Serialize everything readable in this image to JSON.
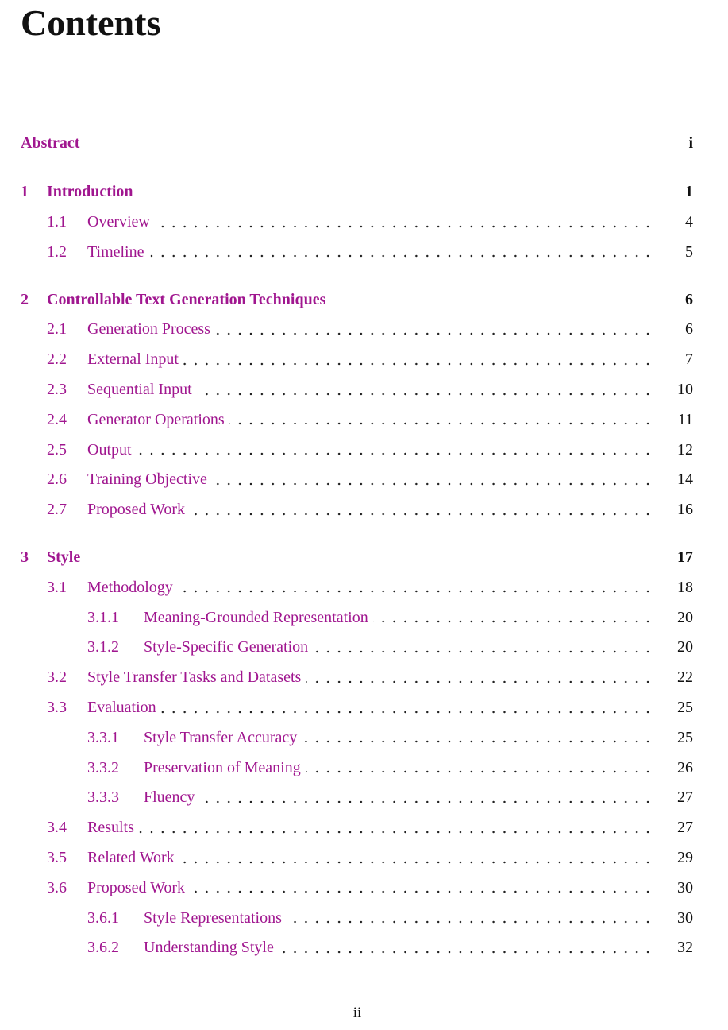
{
  "title": "Contents",
  "accent_color": "#a0168f",
  "entries": [
    {
      "level": "abstract",
      "num": "",
      "title": "Abstract",
      "page": "i"
    },
    {
      "level": "chapter",
      "num": "1",
      "title": "Introduction",
      "page": "1"
    },
    {
      "level": "section",
      "num": "1.1",
      "title": "Overview",
      "page": "4"
    },
    {
      "level": "section",
      "num": "1.2",
      "title": "Timeline",
      "page": "5"
    },
    {
      "level": "chapter",
      "num": "2",
      "title": "Controllable Text Generation Techniques",
      "page": "6"
    },
    {
      "level": "section",
      "num": "2.1",
      "title": "Generation Process",
      "page": "6"
    },
    {
      "level": "section",
      "num": "2.2",
      "title": "External Input",
      "page": "7"
    },
    {
      "level": "section",
      "num": "2.3",
      "title": "Sequential Input",
      "page": "10"
    },
    {
      "level": "section",
      "num": "2.4",
      "title": "Generator Operations",
      "page": "11"
    },
    {
      "level": "section",
      "num": "2.5",
      "title": "Output",
      "page": "12"
    },
    {
      "level": "section",
      "num": "2.6",
      "title": "Training Objective",
      "page": "14"
    },
    {
      "level": "section",
      "num": "2.7",
      "title": "Proposed Work",
      "page": "16"
    },
    {
      "level": "chapter",
      "num": "3",
      "title": "Style",
      "page": "17"
    },
    {
      "level": "section",
      "num": "3.1",
      "title": "Methodology",
      "page": "18"
    },
    {
      "level": "subsection",
      "num": "3.1.1",
      "title": "Meaning-Grounded Representation",
      "page": "20"
    },
    {
      "level": "subsection",
      "num": "3.1.2",
      "title": "Style-Specific Generation",
      "page": "20"
    },
    {
      "level": "section",
      "num": "3.2",
      "title": "Style Transfer Tasks and Datasets",
      "page": "22"
    },
    {
      "level": "section",
      "num": "3.3",
      "title": "Evaluation",
      "page": "25"
    },
    {
      "level": "subsection",
      "num": "3.3.1",
      "title": "Style Transfer Accuracy",
      "page": "25"
    },
    {
      "level": "subsection",
      "num": "3.3.2",
      "title": "Preservation of Meaning",
      "page": "26"
    },
    {
      "level": "subsection",
      "num": "3.3.3",
      "title": "Fluency",
      "page": "27"
    },
    {
      "level": "section",
      "num": "3.4",
      "title": "Results",
      "page": "27"
    },
    {
      "level": "section",
      "num": "3.5",
      "title": "Related Work",
      "page": "29"
    },
    {
      "level": "section",
      "num": "3.6",
      "title": "Proposed Work",
      "page": "30"
    },
    {
      "level": "subsection",
      "num": "3.6.1",
      "title": "Style Representations",
      "page": "30"
    },
    {
      "level": "subsection",
      "num": "3.6.2",
      "title": "Understanding Style",
      "page": "32"
    }
  ],
  "footer": {
    "page_number": "ii"
  }
}
